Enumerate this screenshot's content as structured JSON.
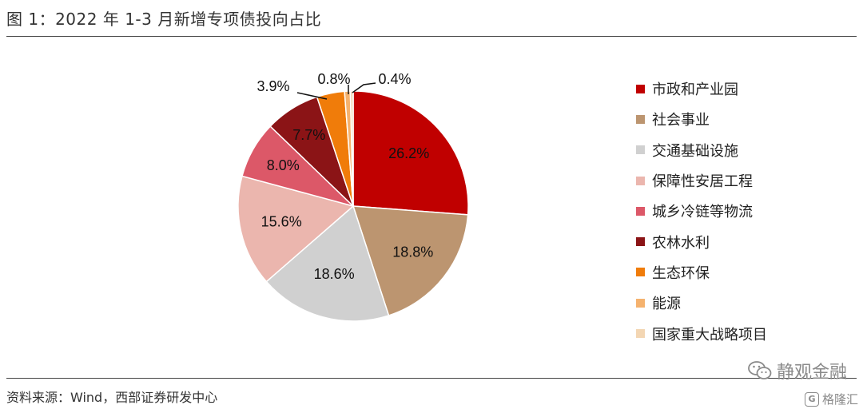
{
  "header": {
    "title": "图 1：2022 年 1-3 月新增专项债投向占比"
  },
  "footer": {
    "source": "资料来源：Wind，西部证券研发中心"
  },
  "watermark": {
    "text": "静观金融",
    "text2": "格隆汇",
    "icon2": "G"
  },
  "chart_data": {
    "type": "pie",
    "start_angle_deg": 0,
    "direction": "clockwise",
    "legend_position": "right",
    "slices": [
      {
        "label": "市政和产业园",
        "value": 26.2,
        "display": "26.2%",
        "color": "#C00000"
      },
      {
        "label": "社会事业",
        "value": 18.8,
        "display": "18.8%",
        "color": "#BC9570"
      },
      {
        "label": "交通基础设施",
        "value": 18.6,
        "display": "18.6%",
        "color": "#D0D0D0"
      },
      {
        "label": "保障性安居工程",
        "value": 15.6,
        "display": "15.6%",
        "color": "#EBB6AE"
      },
      {
        "label": "城乡冷链等物流",
        "value": 8.0,
        "display": "8.0%",
        "color": "#DC5868"
      },
      {
        "label": "农林水利",
        "value": 7.7,
        "display": "7.7%",
        "color": "#8B1416"
      },
      {
        "label": "生态环保",
        "value": 3.9,
        "display": "3.9%",
        "color": "#F07C0A"
      },
      {
        "label": "能源",
        "value": 0.8,
        "display": "0.8%",
        "color": "#F5B26E"
      },
      {
        "label": "国家重大战略项目",
        "value": 0.4,
        "display": "0.4%",
        "color": "#F3D6B3"
      }
    ]
  }
}
